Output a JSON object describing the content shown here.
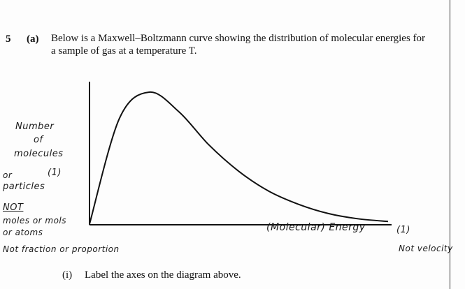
{
  "question": {
    "number": "5",
    "part": "(a)",
    "text_line1": "Below is a Maxwell–Boltzmann curve showing the distribution of molecular energies for",
    "text_line2": "a sample of gas at a temperature T."
  },
  "annotations": {
    "y_label_1": "Number",
    "y_label_2": "of",
    "y_label_3": "molecules",
    "y_mark": "(1)",
    "or": "or",
    "particles": "particles",
    "not": "NOT",
    "moles": "moles or mols",
    "atoms": "or atoms",
    "not_fraction": "Not fraction or proportion",
    "x_label": "(Molecular) Energy",
    "x_mark": "(1)",
    "not_velocity": "Not velocity"
  },
  "sub_question": {
    "number": "(i)",
    "text": "Label the axes on the diagram above."
  },
  "chart_data": {
    "type": "line",
    "title": "",
    "xlabel": "",
    "ylabel": "",
    "series": [
      {
        "x": [
          0,
          0.1,
          0.2,
          0.3,
          0.4,
          0.5,
          0.6,
          0.7,
          0.8,
          0.9,
          1.0
        ],
        "values": [
          0,
          0.8,
          1.0,
          0.85,
          0.6,
          0.4,
          0.25,
          0.15,
          0.08,
          0.04,
          0.02
        ]
      }
    ],
    "grid": false,
    "legend": "none"
  }
}
